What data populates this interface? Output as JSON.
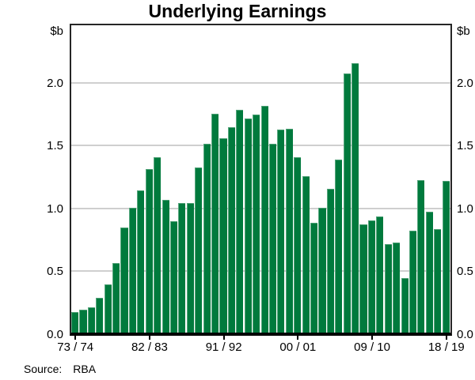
{
  "title": "Underlying Earnings",
  "axis_unit_label": "$b",
  "source": {
    "label": "Source:",
    "value": "RBA"
  },
  "chart_data": {
    "type": "bar",
    "title": "Underlying Earnings",
    "ylabel": "$b",
    "ylim": [
      0,
      2.47
    ],
    "grid": "horizontal",
    "bar_color": "#007a3d",
    "baseline_color": "#000000",
    "gridline_color": "#cfcfcf",
    "yticks": [
      0.0,
      0.5,
      1.0,
      1.5,
      2.0
    ],
    "ytick_labels": [
      "0.0",
      "0.5",
      "1.0",
      "1.5",
      "2.0"
    ],
    "x_axis_note": "annual financial years 1973/74 to 2018/19, one bar per year",
    "x_ticks": [
      {
        "label": "73 / 74",
        "bar_index": 0
      },
      {
        "label": "82 / 83",
        "bar_index": 9
      },
      {
        "label": "91 / 92",
        "bar_index": 18
      },
      {
        "label": "00 / 01",
        "bar_index": 27
      },
      {
        "label": "09 / 10",
        "bar_index": 36
      },
      {
        "label": "18 / 19",
        "bar_index": 45
      }
    ],
    "values": [
      0.17,
      0.19,
      0.21,
      0.28,
      0.39,
      0.56,
      0.84,
      1.0,
      1.14,
      1.31,
      1.4,
      1.06,
      0.89,
      1.04,
      1.04,
      1.32,
      1.51,
      1.75,
      1.55,
      1.64,
      1.78,
      1.71,
      1.74,
      1.81,
      1.51,
      1.62,
      1.63,
      1.4,
      1.25,
      0.88,
      1.0,
      1.15,
      1.38,
      2.07,
      2.15,
      0.87,
      0.9,
      0.93,
      0.71,
      0.72,
      0.44,
      0.82,
      1.22,
      0.97,
      0.83,
      1.21
    ]
  }
}
